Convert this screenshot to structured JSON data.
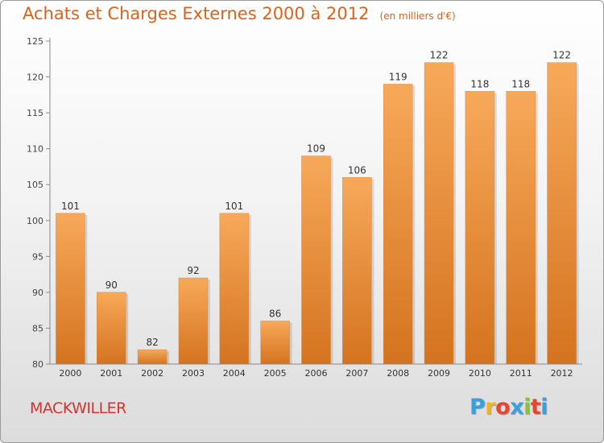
{
  "header": {
    "title": "Achats et Charges Externes 2000 à 2012",
    "subtitle": "(en milliers d'€)"
  },
  "footer": {
    "place": "MACKWILLER",
    "logo_letters": [
      "P",
      "r",
      "o",
      "x",
      "i",
      "t",
      "i"
    ],
    "logo_colors": [
      "#3aa0dc",
      "#f0b420",
      "#e8452f",
      "#3aa0dc",
      "#86c440",
      "#e8452f",
      "#3aa0dc"
    ]
  },
  "colors": {
    "title": "#d9621c",
    "place": "#d2342f",
    "bar_light": "#f7a95a",
    "bar_dark": "#d4731f"
  },
  "chart_data": {
    "type": "bar",
    "categories": [
      "2000",
      "2001",
      "2002",
      "2003",
      "2004",
      "2005",
      "2006",
      "2007",
      "2008",
      "2009",
      "2010",
      "2011",
      "2012"
    ],
    "values": [
      101,
      90,
      82,
      92,
      101,
      86,
      109,
      106,
      119,
      122,
      118,
      118,
      122
    ],
    "ylim": [
      80,
      125
    ],
    "yticks": [
      80,
      85,
      90,
      95,
      100,
      105,
      110,
      115,
      120,
      125
    ],
    "grid": false,
    "data_labels": true
  }
}
